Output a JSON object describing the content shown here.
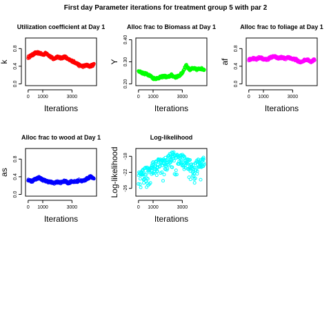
{
  "title": "First day Parameter iterations for treatment group 5 with par 2",
  "chart_data": [
    {
      "type": "scatter",
      "title": "Utilization coefficient at Day 1",
      "xlabel": "Iterations",
      "ylabel": "k",
      "xlim": [
        0,
        4500
      ],
      "ylim": [
        0,
        1
      ],
      "xticks": [
        0,
        1000,
        3000
      ],
      "yticks": [
        0.0,
        0.4,
        0.8
      ],
      "yticklabels": [
        "0.0",
        "0.4",
        "0.8"
      ],
      "color": "#ff0000",
      "series": [
        {
          "x": [
            0,
            250,
            500,
            750,
            1000,
            1250,
            1500,
            1750,
            2000,
            2250,
            2500,
            2750,
            3000,
            3250,
            3500,
            3750,
            4000,
            4250,
            4500
          ],
          "values": [
            0.6,
            0.65,
            0.7,
            0.7,
            0.66,
            0.7,
            0.62,
            0.56,
            0.62,
            0.58,
            0.62,
            0.55,
            0.52,
            0.48,
            0.42,
            0.4,
            0.42,
            0.4,
            0.44
          ]
        }
      ]
    },
    {
      "type": "scatter",
      "title": "Alloc frac to Biomass at Day 1",
      "xlabel": "Iterations",
      "ylabel": "Y",
      "xlim": [
        0,
        4500
      ],
      "ylim": [
        0.2,
        0.4
      ],
      "xticks": [
        0,
        1000,
        3000
      ],
      "yticks": [
        0.2,
        0.3,
        0.4
      ],
      "yticklabels": [
        "0.20",
        "0.30",
        "0.40"
      ],
      "color": "#00ff00",
      "series": [
        {
          "x": [
            0,
            250,
            500,
            750,
            1000,
            1250,
            1500,
            1750,
            2000,
            2250,
            2500,
            2750,
            3000,
            3250,
            3500,
            3750,
            4000,
            4250,
            4500
          ],
          "values": [
            0.26,
            0.25,
            0.245,
            0.24,
            0.225,
            0.225,
            0.23,
            0.235,
            0.23,
            0.24,
            0.23,
            0.235,
            0.25,
            0.285,
            0.265,
            0.27,
            0.265,
            0.27,
            0.265
          ]
        }
      ]
    },
    {
      "type": "scatter",
      "title": "Alloc frac to foliage at Day 1",
      "xlabel": "Iterations",
      "ylabel": "af",
      "xlim": [
        0,
        4500
      ],
      "ylim": [
        0,
        1
      ],
      "xticks": [
        0,
        1000,
        3000
      ],
      "yticks": [
        0.0,
        0.4,
        0.8
      ],
      "yticklabels": [
        "0.0",
        "0.4",
        "0.8"
      ],
      "color": "#ff00ff",
      "series": [
        {
          "x": [
            0,
            250,
            500,
            750,
            1000,
            1250,
            1500,
            1750,
            2000,
            2250,
            2500,
            2750,
            3000,
            3250,
            3500,
            3750,
            4000,
            4250,
            4500
          ],
          "values": [
            0.55,
            0.58,
            0.55,
            0.6,
            0.56,
            0.55,
            0.6,
            0.62,
            0.58,
            0.6,
            0.57,
            0.6,
            0.56,
            0.55,
            0.48,
            0.53,
            0.56,
            0.5,
            0.55
          ]
        }
      ]
    },
    {
      "type": "scatter",
      "title": "Alloc frac to wood at Day 1",
      "xlabel": "Iterations",
      "ylabel": "as",
      "xlim": [
        0,
        4500
      ],
      "ylim": [
        0,
        1
      ],
      "xticks": [
        0,
        1000,
        3000
      ],
      "yticks": [
        0.0,
        0.4,
        0.8
      ],
      "yticklabels": [
        "0.0",
        "0.4",
        "0.8"
      ],
      "color": "#0000ff",
      "series": [
        {
          "x": [
            0,
            250,
            500,
            750,
            1000,
            1250,
            1500,
            1750,
            2000,
            2250,
            2500,
            2750,
            3000,
            3250,
            3500,
            3750,
            4000,
            4250,
            4500
          ],
          "values": [
            0.33,
            0.3,
            0.35,
            0.38,
            0.33,
            0.3,
            0.28,
            0.26,
            0.28,
            0.27,
            0.3,
            0.26,
            0.3,
            0.28,
            0.32,
            0.3,
            0.35,
            0.4,
            0.36
          ]
        }
      ]
    },
    {
      "type": "scatter",
      "title": "Log-likelihood",
      "xlabel": "Iterations",
      "ylabel": "Log-likelihood",
      "xlim": [
        0,
        4500
      ],
      "ylim": [
        -27.5,
        -16.5
      ],
      "xticks": [
        0,
        1000,
        3000
      ],
      "yticks": [
        -26,
        -22,
        -18
      ],
      "yticklabels": [
        "-26",
        "-22",
        "-18"
      ],
      "color": "#00ffff",
      "series": [
        {
          "x": [
            0,
            250,
            500,
            750,
            1000,
            1250,
            1500,
            1750,
            2000,
            2250,
            2500,
            2750,
            3000,
            3250,
            3500,
            3750,
            4000,
            4250,
            4500
          ],
          "values": [
            -22,
            -21.5,
            -20.5,
            -21,
            -19.5,
            -19,
            -18.5,
            -18.8,
            -18,
            -17,
            -17.2,
            -18,
            -17.5,
            -18.5,
            -19,
            -20,
            -19,
            -18.5,
            -18
          ]
        }
      ]
    }
  ]
}
